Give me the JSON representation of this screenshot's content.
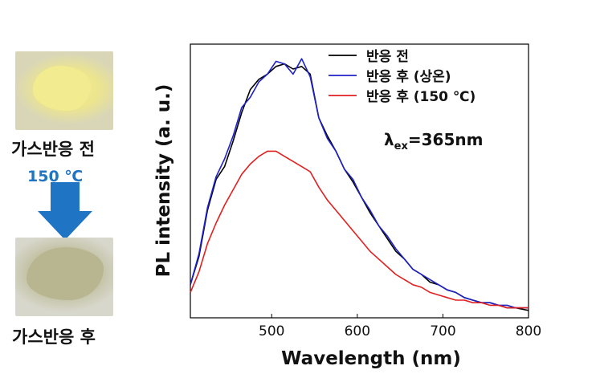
{
  "left_panel": {
    "before_label": "가스반응 전",
    "after_label": "가스반응 후",
    "temperature": "150 ℃",
    "arrow_color": "#1f74c4"
  },
  "chart_data": {
    "type": "line",
    "title": "",
    "xlabel": "Wavelength (nm)",
    "ylabel": "PL intensity (a. u.)",
    "xlim": [
      405,
      800
    ],
    "ylim": [
      0,
      1
    ],
    "xticks": [
      "500",
      "600",
      "700",
      "800"
    ],
    "ytick_labels": "none",
    "annotation": {
      "lambda": "λ",
      "sub": "ex",
      "rest": "=365nm"
    },
    "legend_position": "top-right",
    "series": [
      {
        "name": "반응 전",
        "color": "#000000",
        "x": [
          405,
          415,
          425,
          435,
          445,
          455,
          465,
          475,
          485,
          495,
          505,
          515,
          525,
          535,
          545,
          555,
          565,
          575,
          585,
          595,
          605,
          615,
          625,
          635,
          645,
          655,
          665,
          675,
          685,
          695,
          705,
          715,
          725,
          735,
          745,
          755,
          765,
          775,
          785,
          800
        ],
        "y": [
          0.11,
          0.22,
          0.4,
          0.52,
          0.57,
          0.67,
          0.78,
          0.87,
          0.91,
          0.93,
          0.96,
          0.97,
          0.95,
          0.96,
          0.93,
          0.76,
          0.69,
          0.63,
          0.56,
          0.51,
          0.45,
          0.39,
          0.34,
          0.29,
          0.24,
          0.21,
          0.17,
          0.15,
          0.12,
          0.11,
          0.09,
          0.08,
          0.06,
          0.05,
          0.04,
          0.04,
          0.03,
          0.02,
          0.02,
          0.01
        ]
      },
      {
        "name": "반응 후 (상온)",
        "color": "#1f22c6",
        "x": [
          405,
          415,
          425,
          435,
          445,
          455,
          465,
          475,
          485,
          495,
          505,
          515,
          525,
          535,
          545,
          555,
          565,
          575,
          585,
          595,
          605,
          615,
          625,
          635,
          645,
          655,
          665,
          675,
          685,
          695,
          705,
          715,
          725,
          735,
          745,
          755,
          765,
          775,
          785,
          800
        ],
        "y": [
          0.11,
          0.23,
          0.41,
          0.53,
          0.6,
          0.69,
          0.8,
          0.84,
          0.9,
          0.93,
          0.98,
          0.97,
          0.93,
          0.99,
          0.92,
          0.76,
          0.68,
          0.63,
          0.56,
          0.52,
          0.45,
          0.4,
          0.34,
          0.3,
          0.25,
          0.21,
          0.17,
          0.15,
          0.13,
          0.11,
          0.09,
          0.08,
          0.06,
          0.05,
          0.04,
          0.04,
          0.03,
          0.03,
          0.02,
          0.02
        ]
      },
      {
        "name": "반응 후 (150 ℃)",
        "color": "#e02020",
        "x": [
          405,
          415,
          425,
          435,
          445,
          455,
          465,
          475,
          485,
          495,
          505,
          515,
          525,
          535,
          545,
          555,
          565,
          575,
          585,
          595,
          605,
          615,
          625,
          635,
          645,
          655,
          665,
          675,
          685,
          695,
          705,
          715,
          725,
          735,
          745,
          755,
          765,
          775,
          785,
          800
        ],
        "y": [
          0.08,
          0.16,
          0.27,
          0.35,
          0.42,
          0.48,
          0.54,
          0.58,
          0.61,
          0.63,
          0.63,
          0.61,
          0.59,
          0.57,
          0.55,
          0.49,
          0.44,
          0.4,
          0.36,
          0.32,
          0.28,
          0.24,
          0.21,
          0.18,
          0.15,
          0.13,
          0.11,
          0.1,
          0.08,
          0.07,
          0.06,
          0.05,
          0.05,
          0.04,
          0.04,
          0.03,
          0.03,
          0.02,
          0.02,
          0.02
        ]
      }
    ]
  }
}
